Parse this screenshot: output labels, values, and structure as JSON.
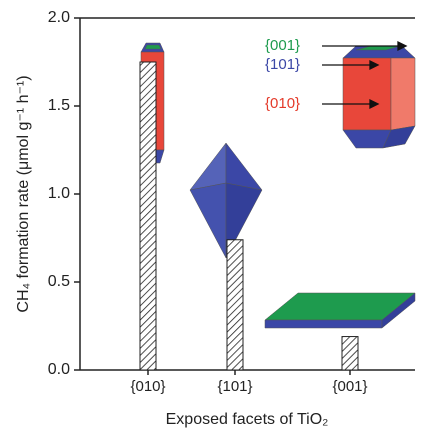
{
  "chart_data": {
    "type": "bar",
    "x_label": "Exposed facets of TiO₂",
    "y_label": "CH₄ formation rate (μmol g⁻¹ h⁻¹)",
    "categories": [
      "{010}",
      "{101}",
      "{001}"
    ],
    "values": [
      1.75,
      0.74,
      0.19
    ],
    "ylim": [
      0,
      2
    ],
    "yticks": [
      {
        "value": 0,
        "label": "0.0"
      },
      0.5,
      {
        "value": 1,
        "label": "1.0"
      },
      1.5,
      {
        "value": 2,
        "label": "2.0"
      }
    ],
    "annotations": [
      {
        "text": "{001}",
        "color": "#1e9b4e"
      },
      {
        "text": "{101}",
        "color": "#3b47a6"
      },
      {
        "text": "{010}",
        "color": "#e43a2a"
      }
    ]
  }
}
